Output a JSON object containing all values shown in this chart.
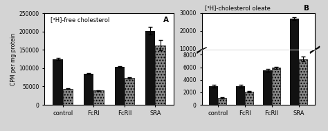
{
  "panel_A": {
    "title": "[³H]-free cholesterol",
    "label": "A",
    "categories": [
      "control",
      "FcRI",
      "FcRII",
      "SRA"
    ],
    "black_bars": [
      125000,
      84000,
      103000,
      202000
    ],
    "gray_bars": [
      44000,
      39000,
      73000,
      162000
    ],
    "black_errors": [
      3000,
      2000,
      2000,
      10000
    ],
    "gray_errors": [
      1500,
      1200,
      2500,
      14000
    ],
    "ylim": [
      0,
      250000
    ],
    "yticks": [
      0,
      50000,
      100000,
      150000,
      200000,
      250000
    ],
    "ylabel": "CPM per mg protein"
  },
  "panel_B": {
    "title": "[³H]-cholesterol oleate",
    "label": "B",
    "categories": [
      "control",
      "FcRI",
      "FcRII",
      "SRA"
    ],
    "black_bars": [
      3000,
      3000,
      5500,
      27000
    ],
    "gray_bars": [
      1100,
      2100,
      5900,
      7300
    ],
    "black_errors": [
      200,
      200,
      200,
      700
    ],
    "gray_errors": [
      100,
      150,
      200,
      400
    ],
    "yticks_lower": [
      0,
      2000,
      4000,
      6000,
      8000
    ],
    "yticks_upper": [
      10000,
      20000,
      30000
    ]
  },
  "bar_width": 0.32,
  "black_color": "#111111",
  "gray_color": "#888888",
  "hatch": "....",
  "bg_color": "#ffffff",
  "figure_bg": "#d4d4d4"
}
